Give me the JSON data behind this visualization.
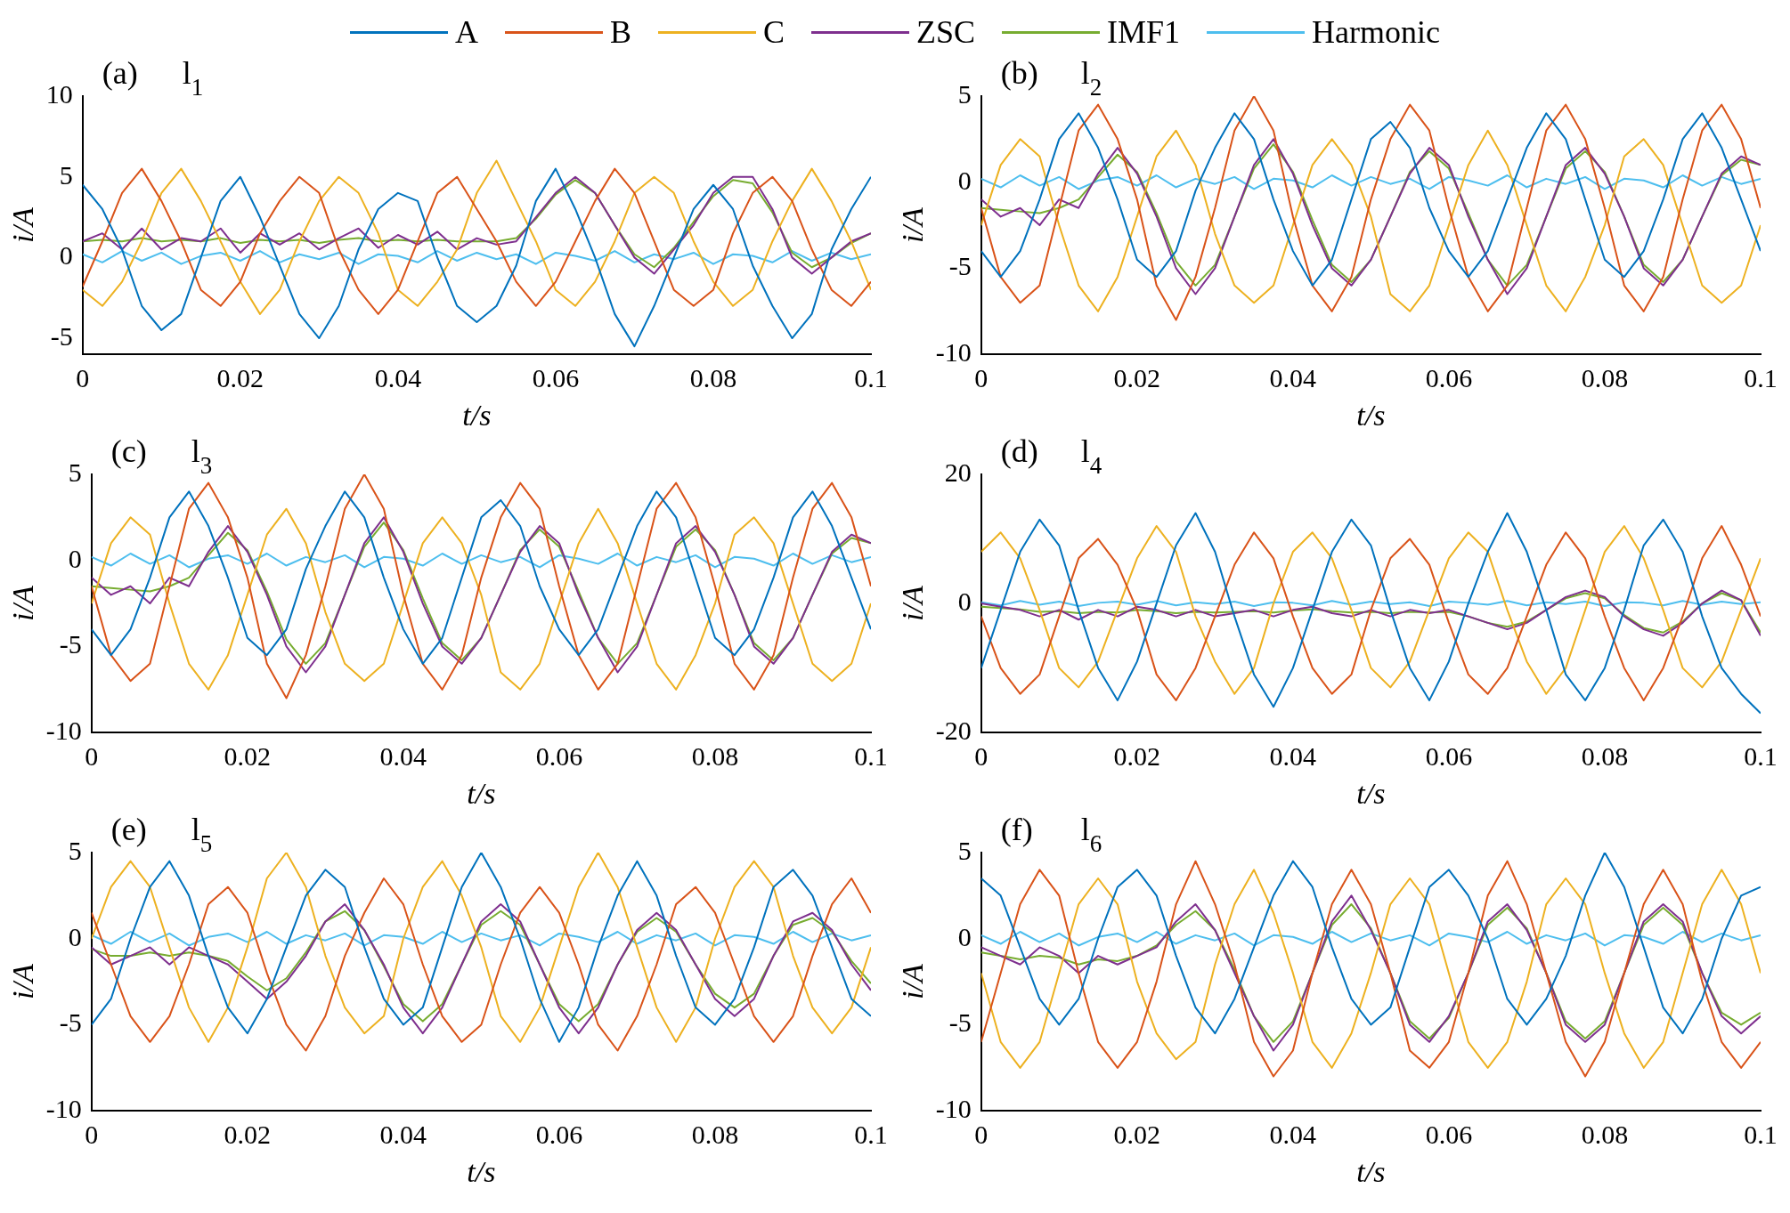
{
  "chart_data": [
    {
      "type": "line",
      "annotations": [
        "(a)",
        "l$_{1}$"
      ],
      "xlabel": "t/s",
      "ylabel": "i/A",
      "xlim": [
        0,
        0.1
      ],
      "xticks": [
        0,
        0.02,
        0.04,
        0.06,
        0.08,
        0.1
      ],
      "ylim": [
        -6,
        10
      ],
      "yticks": [
        -5,
        0,
        5,
        10
      ],
      "grid": false,
      "legend": "top",
      "marker": "none",
      "x": [
        0,
        0.0025,
        0.005,
        0.0075,
        0.01,
        0.0125,
        0.015,
        0.0175,
        0.02,
        0.0225,
        0.025,
        0.0275,
        0.03,
        0.0325,
        0.035,
        0.0375,
        0.04,
        0.0425,
        0.045,
        0.0475,
        0.05,
        0.0525,
        0.055,
        0.0575,
        0.06,
        0.0625,
        0.065,
        0.0675,
        0.07,
        0.0725,
        0.075,
        0.0775,
        0.08,
        0.0825,
        0.085,
        0.0875,
        0.09,
        0.0925,
        0.095,
        0.0975,
        0.1
      ],
      "series": [
        {
          "name": "A",
          "color": "#0072bd",
          "values": [
            4.5,
            3,
            0.5,
            -3,
            -4.5,
            -3.5,
            0,
            3.5,
            5,
            2.5,
            -0.5,
            -3.5,
            -5,
            -3,
            0.5,
            3,
            4,
            3.5,
            0,
            -3,
            -4,
            -3,
            -0.5,
            3.5,
            5.5,
            3,
            0,
            -3.5,
            -5.5,
            -3,
            0,
            3,
            4.5,
            3,
            -0.5,
            -3,
            -5,
            -3.5,
            0.5,
            3,
            5
          ]
        },
        {
          "name": "B",
          "color": "#d95319",
          "values": [
            -1.8,
            1,
            4,
            5.5,
            3.5,
            1,
            -2,
            -3,
            -1.5,
            1.5,
            3.5,
            5,
            4,
            0.5,
            -2,
            -3.5,
            -2,
            1,
            4,
            5,
            3,
            1,
            -1.5,
            -3,
            -1.5,
            1,
            3.5,
            5.5,
            4,
            1,
            -2,
            -3,
            -2,
            1.5,
            4,
            5,
            3.5,
            0.5,
            -2,
            -3,
            -1.5
          ]
        },
        {
          "name": "C",
          "color": "#edb120",
          "values": [
            -2,
            -3,
            -1.5,
            1,
            4,
            5.5,
            3.5,
            1,
            -1.5,
            -3.5,
            -2,
            1,
            3.5,
            5,
            4,
            1.5,
            -2,
            -3,
            -1.5,
            0.5,
            4,
            6,
            3.5,
            1,
            -2,
            -3,
            -1.5,
            1,
            4,
            5,
            4,
            1,
            -1.5,
            -3,
            -2,
            1,
            3.5,
            5.5,
            3.5,
            1,
            -2
          ]
        },
        {
          "name": "ZSC",
          "color": "#7e2f8e",
          "values": [
            1,
            1.5,
            0.5,
            1.8,
            0.5,
            1.2,
            1,
            1.8,
            0.3,
            1.5,
            0.8,
            1.5,
            0.5,
            1.2,
            1.8,
            0.6,
            1.4,
            0.8,
            1.6,
            0.5,
            1.2,
            0.8,
            1,
            2.5,
            4,
            5,
            4,
            2,
            0,
            -1,
            0.5,
            2,
            4,
            5,
            5,
            3,
            0,
            -1,
            0,
            1,
            1.5
          ]
        },
        {
          "name": "IMF1",
          "color": "#77ac30",
          "values": [
            1,
            1.1,
            1,
            1.2,
            1,
            1.1,
            1,
            1.2,
            0.9,
            1.1,
            1,
            1.1,
            0.9,
            1.1,
            1.2,
            1,
            1.1,
            1,
            1.1,
            1,
            1,
            1,
            1.2,
            2.4,
            3.9,
            4.8,
            4,
            2,
            0.2,
            -0.6,
            0.6,
            2.2,
            3.8,
            4.8,
            4.6,
            2.8,
            0.3,
            -0.6,
            0,
            0.9,
            1.5
          ]
        },
        {
          "name": "Harmonic",
          "color": "#4dbeee",
          "values": [
            0.2,
            -0.3,
            0.4,
            -0.2,
            0.3,
            -0.4,
            0.1,
            0.3,
            -0.2,
            0.4,
            -0.3,
            0.2,
            -0.1,
            0.3,
            -0.4,
            0.2,
            0.1,
            -0.3,
            0.4,
            -0.2,
            0.3,
            -0.1,
            0.2,
            -0.4,
            0.3,
            0.1,
            -0.2,
            0.4,
            -0.3,
            0.2,
            -0.1,
            0.3,
            -0.4,
            0.2,
            0.1,
            -0.3,
            0.4,
            -0.2,
            0.3,
            -0.1,
            0.2
          ]
        }
      ]
    },
    {
      "type": "line",
      "annotations": [
        "(b)",
        "l$_{2}$"
      ],
      "xlabel": "t/s",
      "ylabel": "i/A",
      "xlim": [
        0,
        0.1
      ],
      "xticks": [
        0,
        0.02,
        0.04,
        0.06,
        0.08,
        0.1
      ],
      "ylim": [
        -10,
        5
      ],
      "yticks": [
        -10,
        -5,
        0,
        5
      ],
      "grid": false,
      "marker": "none",
      "x": [
        0,
        0.0025,
        0.005,
        0.0075,
        0.01,
        0.0125,
        0.015,
        0.0175,
        0.02,
        0.0225,
        0.025,
        0.0275,
        0.03,
        0.0325,
        0.035,
        0.0375,
        0.04,
        0.0425,
        0.045,
        0.0475,
        0.05,
        0.0525,
        0.055,
        0.0575,
        0.06,
        0.0625,
        0.065,
        0.0675,
        0.07,
        0.0725,
        0.075,
        0.0775,
        0.08,
        0.0825,
        0.085,
        0.0875,
        0.09,
        0.0925,
        0.095,
        0.0975,
        0.1
      ],
      "series": [
        {
          "color": "#0072bd",
          "values": [
            -4,
            -5.5,
            -4,
            -1,
            2.5,
            4,
            2,
            -1,
            -4.5,
            -5.5,
            -4,
            -0.5,
            2,
            4,
            2.5,
            -1,
            -4,
            -6,
            -4.5,
            -1,
            2.5,
            3.5,
            2,
            -1.5,
            -4,
            -5.5,
            -4,
            -1,
            2,
            4,
            2.5,
            -1,
            -4.5,
            -5.5,
            -4,
            -1,
            2.5,
            4,
            2,
            -1,
            -4
          ]
        },
        {
          "color": "#d95319",
          "values": [
            -1.5,
            -5.5,
            -7,
            -6,
            -1.5,
            3,
            4.5,
            2.5,
            -1,
            -6,
            -8,
            -5.5,
            -1.5,
            3,
            5,
            3,
            -2,
            -6,
            -7.5,
            -5.5,
            -1,
            2.5,
            4.5,
            3,
            -1.5,
            -5.5,
            -7.5,
            -6,
            -1.5,
            3,
            4.5,
            2.5,
            -1.5,
            -6,
            -7.5,
            -5.5,
            -1,
            3,
            4.5,
            2.5,
            -1.5
          ]
        },
        {
          "color": "#edb120",
          "values": [
            -2.5,
            1,
            2.5,
            1.5,
            -2.5,
            -6,
            -7.5,
            -5.5,
            -2,
            1.5,
            3,
            1,
            -3,
            -6,
            -7,
            -6,
            -2.5,
            1,
            2.5,
            1,
            -2,
            -6.5,
            -7.5,
            -6,
            -2.5,
            1,
            3,
            1,
            -2.5,
            -6,
            -7.5,
            -5.5,
            -2.5,
            1.5,
            2.5,
            1,
            -2.5,
            -6,
            -7,
            -6,
            -2.5
          ]
        },
        {
          "color": "#7e2f8e",
          "values": [
            -1,
            -2,
            -1.5,
            -2.5,
            -1,
            -1.5,
            0.5,
            2,
            0.5,
            -2,
            -5,
            -6.5,
            -5,
            -2,
            1,
            2.5,
            0.5,
            -2.5,
            -5,
            -6,
            -4.5,
            -2,
            0.5,
            2,
            1,
            -2,
            -4.5,
            -6.5,
            -5,
            -2,
            1,
            2,
            0.5,
            -2,
            -5,
            -6,
            -4.5,
            -2,
            0.5,
            1.5,
            1
          ]
        },
        {
          "color": "#77ac30",
          "values": [
            -1.5,
            -1.6,
            -1.7,
            -1.8,
            -1.5,
            -1,
            0.3,
            1.6,
            0.6,
            -1.8,
            -4.6,
            -6,
            -4.8,
            -2,
            0.8,
            2.2,
            0.6,
            -2.2,
            -4.8,
            -5.8,
            -4.5,
            -2,
            0.6,
            1.8,
            0.8,
            -1.8,
            -4.5,
            -6,
            -4.8,
            -2,
            0.8,
            1.8,
            0.6,
            -2,
            -4.8,
            -5.8,
            -4.5,
            -2,
            0.4,
            1.3,
            1
          ]
        },
        {
          "color": "#4dbeee",
          "values": [
            0.2,
            -0.3,
            0.4,
            -0.2,
            0.3,
            -0.4,
            0.1,
            0.3,
            -0.2,
            0.4,
            -0.3,
            0.2,
            -0.1,
            0.3,
            -0.4,
            0.2,
            0.1,
            -0.3,
            0.4,
            -0.2,
            0.3,
            -0.1,
            0.2,
            -0.4,
            0.3,
            0.1,
            -0.2,
            0.4,
            -0.3,
            0.2,
            -0.1,
            0.3,
            -0.4,
            0.2,
            0.1,
            -0.3,
            0.4,
            -0.2,
            0.3,
            -0.1,
            0.2
          ]
        }
      ]
    },
    {
      "type": "line",
      "annotations": [
        "(c)",
        "l$_{3}$"
      ],
      "xlabel": "t/s",
      "ylabel": "i/A",
      "xlim": [
        0,
        0.1
      ],
      "xticks": [
        0,
        0.02,
        0.04,
        0.06,
        0.08,
        0.1
      ],
      "ylim": [
        -10,
        5
      ],
      "yticks": [
        -10,
        -5,
        0,
        5
      ],
      "grid": false,
      "marker": "none",
      "x": [
        0,
        0.0025,
        0.005,
        0.0075,
        0.01,
        0.0125,
        0.015,
        0.0175,
        0.02,
        0.0225,
        0.025,
        0.0275,
        0.03,
        0.0325,
        0.035,
        0.0375,
        0.04,
        0.0425,
        0.045,
        0.0475,
        0.05,
        0.0525,
        0.055,
        0.0575,
        0.06,
        0.0625,
        0.065,
        0.0675,
        0.07,
        0.0725,
        0.075,
        0.0775,
        0.08,
        0.0825,
        0.085,
        0.0875,
        0.09,
        0.0925,
        0.095,
        0.0975,
        0.1
      ],
      "series": [
        {
          "color": "#0072bd",
          "values": [
            -4,
            -5.5,
            -4,
            -1,
            2.5,
            4,
            2,
            -1,
            -4.5,
            -5.5,
            -4,
            -0.5,
            2,
            4,
            2.5,
            -1,
            -4,
            -6,
            -4.5,
            -1,
            2.5,
            3.5,
            2,
            -1.5,
            -4,
            -5.5,
            -4,
            -1,
            2,
            4,
            2.5,
            -1,
            -4.5,
            -5.5,
            -4,
            -1,
            2.5,
            4,
            2,
            -1,
            -4
          ]
        },
        {
          "color": "#d95319",
          "values": [
            -1.5,
            -5.5,
            -7,
            -6,
            -1.5,
            3,
            4.5,
            2.5,
            -1,
            -6,
            -8,
            -5.5,
            -1.5,
            3,
            5,
            3,
            -2,
            -6,
            -7.5,
            -5.5,
            -1,
            2.5,
            4.5,
            3,
            -1.5,
            -5.5,
            -7.5,
            -6,
            -1.5,
            3,
            4.5,
            2.5,
            -1.5,
            -6,
            -7.5,
            -5.5,
            -1,
            3,
            4.5,
            2.5,
            -1.5
          ]
        },
        {
          "color": "#edb120",
          "values": [
            -2.5,
            1,
            2.5,
            1.5,
            -2.5,
            -6,
            -7.5,
            -5.5,
            -2,
            1.5,
            3,
            1,
            -3,
            -6,
            -7,
            -6,
            -2.5,
            1,
            2.5,
            1,
            -2,
            -6.5,
            -7.5,
            -6,
            -2.5,
            1,
            3,
            1,
            -2.5,
            -6,
            -7.5,
            -5.5,
            -2.5,
            1.5,
            2.5,
            1,
            -2.5,
            -6,
            -7,
            -6,
            -2.5
          ]
        },
        {
          "color": "#7e2f8e",
          "values": [
            -1,
            -2,
            -1.5,
            -2.5,
            -1,
            -1.5,
            0.5,
            2,
            0.5,
            -2,
            -5,
            -6.5,
            -5,
            -2,
            1,
            2.5,
            0.5,
            -2.5,
            -5,
            -6,
            -4.5,
            -2,
            0.5,
            2,
            1,
            -2,
            -4.5,
            -6.5,
            -5,
            -2,
            1,
            2,
            0.5,
            -2,
            -5,
            -6,
            -4.5,
            -2,
            0.5,
            1.5,
            1
          ]
        },
        {
          "color": "#77ac30",
          "values": [
            -1.5,
            -1.6,
            -1.7,
            -1.8,
            -1.5,
            -1,
            0.3,
            1.6,
            0.6,
            -1.8,
            -4.6,
            -6,
            -4.8,
            -2,
            0.8,
            2.2,
            0.6,
            -2.2,
            -4.8,
            -5.8,
            -4.5,
            -2,
            0.6,
            1.8,
            0.8,
            -1.8,
            -4.5,
            -6,
            -4.8,
            -2,
            0.8,
            1.8,
            0.6,
            -2,
            -4.8,
            -5.8,
            -4.5,
            -2,
            0.4,
            1.3,
            1
          ]
        },
        {
          "color": "#4dbeee",
          "values": [
            0.2,
            -0.3,
            0.4,
            -0.2,
            0.3,
            -0.4,
            0.1,
            0.3,
            -0.2,
            0.4,
            -0.3,
            0.2,
            -0.1,
            0.3,
            -0.4,
            0.2,
            0.1,
            -0.3,
            0.4,
            -0.2,
            0.3,
            -0.1,
            0.2,
            -0.4,
            0.3,
            0.1,
            -0.2,
            0.4,
            -0.3,
            0.2,
            -0.1,
            0.3,
            -0.4,
            0.2,
            0.1,
            -0.3,
            0.4,
            -0.2,
            0.3,
            -0.1,
            0.2
          ]
        }
      ]
    },
    {
      "type": "line",
      "annotations": [
        "(d)",
        "l$_{4}$"
      ],
      "xlabel": "t/s",
      "ylabel": "i/A",
      "xlim": [
        0,
        0.1
      ],
      "xticks": [
        0,
        0.02,
        0.04,
        0.06,
        0.08,
        0.1
      ],
      "ylim": [
        -20,
        20
      ],
      "yticks": [
        -20,
        0,
        20
      ],
      "grid": false,
      "marker": "none",
      "x": [
        0,
        0.0025,
        0.005,
        0.0075,
        0.01,
        0.0125,
        0.015,
        0.0175,
        0.02,
        0.0225,
        0.025,
        0.0275,
        0.03,
        0.0325,
        0.035,
        0.0375,
        0.04,
        0.0425,
        0.045,
        0.0475,
        0.05,
        0.0525,
        0.055,
        0.0575,
        0.06,
        0.0625,
        0.065,
        0.0675,
        0.07,
        0.0725,
        0.075,
        0.0775,
        0.08,
        0.0825,
        0.085,
        0.0875,
        0.09,
        0.0925,
        0.095,
        0.0975,
        0.1
      ],
      "series": [
        {
          "color": "#0072bd",
          "values": [
            -10,
            -1,
            8,
            13,
            9,
            -1,
            -10,
            -15,
            -9,
            0,
            9,
            14,
            8,
            -2,
            -11,
            -16,
            -10,
            -1,
            8,
            13,
            9,
            -1,
            -10,
            -15,
            -9,
            0,
            8,
            14,
            8,
            -1,
            -11,
            -15,
            -10,
            -1,
            9,
            13,
            8,
            -2,
            -10,
            -14,
            -17
          ]
        },
        {
          "color": "#d95319",
          "values": [
            -2,
            -10,
            -14,
            -11,
            -2,
            7,
            10,
            6,
            -1,
            -11,
            -15,
            -10,
            -2,
            6,
            11,
            7,
            -2,
            -10,
            -14,
            -11,
            -1,
            7,
            10,
            6,
            -3,
            -11,
            -14,
            -10,
            -2,
            6,
            11,
            7,
            -2,
            -10,
            -15,
            -10,
            -2,
            7,
            12,
            6,
            -2
          ]
        },
        {
          "color": "#edb120",
          "values": [
            8,
            11,
            7,
            -1,
            -10,
            -13,
            -9,
            -1,
            7,
            12,
            8,
            -2,
            -9,
            -14,
            -10,
            0,
            8,
            11,
            7,
            -1,
            -10,
            -13,
            -9,
            -1,
            7,
            11,
            8,
            -1,
            -9,
            -14,
            -10,
            -1,
            8,
            12,
            7,
            -1,
            -10,
            -13,
            -9,
            -1,
            7
          ]
        },
        {
          "color": "#7e2f8e",
          "values": [
            0,
            -0.5,
            -1,
            -2,
            -1,
            -2.5,
            -1,
            -2,
            -0.5,
            -1,
            -2,
            -1,
            -2,
            -1.5,
            -1,
            -2,
            -1,
            -0.5,
            -1.5,
            -2,
            -1,
            -2,
            -1,
            -1.5,
            -1,
            -2,
            -3,
            -4,
            -3,
            -1,
            1,
            2,
            1,
            -2,
            -4,
            -5,
            -3,
            0,
            2,
            0.5,
            -5
          ]
        },
        {
          "color": "#77ac30",
          "values": [
            -0.5,
            -0.7,
            -0.9,
            -1.3,
            -1.2,
            -1.5,
            -1.3,
            -1.4,
            -1,
            -1.2,
            -1.5,
            -1.3,
            -1.4,
            -1.3,
            -1.2,
            -1.4,
            -1.1,
            -0.9,
            -1.2,
            -1.4,
            -1.3,
            -1.5,
            -1.3,
            -1.4,
            -1.3,
            -2,
            -3,
            -3.6,
            -2.8,
            -1,
            0.8,
            1.6,
            0.8,
            -1.8,
            -3.8,
            -4.5,
            -2.8,
            0,
            1.6,
            0.5,
            -4.5
          ]
        },
        {
          "color": "#4dbeee",
          "values": [
            0.2,
            -0.3,
            0.4,
            -0.2,
            0.3,
            -0.4,
            0.1,
            0.3,
            -0.2,
            0.4,
            -0.3,
            0.2,
            -0.1,
            0.3,
            -0.4,
            0.2,
            0.1,
            -0.3,
            0.4,
            -0.2,
            0.3,
            -0.1,
            0.2,
            -0.4,
            0.3,
            0.1,
            -0.2,
            0.4,
            -0.3,
            0.2,
            -0.1,
            0.3,
            -0.4,
            0.2,
            0.1,
            -0.3,
            0.4,
            -0.2,
            0.3,
            -0.1,
            0.2
          ]
        }
      ]
    },
    {
      "type": "line",
      "annotations": [
        "(e)",
        "l$_{5}$"
      ],
      "xlabel": "t/s",
      "ylabel": "i/A",
      "xlim": [
        0,
        0.1
      ],
      "xticks": [
        0,
        0.02,
        0.04,
        0.06,
        0.08,
        0.1
      ],
      "ylim": [
        -10,
        5
      ],
      "yticks": [
        -10,
        -5,
        0,
        5
      ],
      "grid": false,
      "marker": "none",
      "x": [
        0,
        0.0025,
        0.005,
        0.0075,
        0.01,
        0.0125,
        0.015,
        0.0175,
        0.02,
        0.0225,
        0.025,
        0.0275,
        0.03,
        0.0325,
        0.035,
        0.0375,
        0.04,
        0.0425,
        0.045,
        0.0475,
        0.05,
        0.0525,
        0.055,
        0.0575,
        0.06,
        0.0625,
        0.065,
        0.0675,
        0.07,
        0.0725,
        0.075,
        0.0775,
        0.08,
        0.0825,
        0.085,
        0.0875,
        0.09,
        0.0925,
        0.095,
        0.0975,
        0.1
      ],
      "series": [
        {
          "color": "#0072bd",
          "values": [
            -5,
            -3.5,
            0,
            3,
            4.5,
            2.5,
            -1,
            -4,
            -5.5,
            -3.5,
            -0.5,
            2.5,
            4,
            3,
            -0.5,
            -3.5,
            -5,
            -4,
            -0.5,
            3,
            5,
            3,
            0,
            -3.5,
            -6,
            -4,
            -0.5,
            2.5,
            4.5,
            2.5,
            -1,
            -4,
            -5,
            -3.5,
            -0.5,
            3,
            4,
            2.5,
            -0.5,
            -3.5,
            -4.5
          ]
        },
        {
          "color": "#d95319",
          "values": [
            1.5,
            -1.5,
            -4.5,
            -6,
            -4.5,
            -1.5,
            2,
            3,
            1.5,
            -2,
            -5,
            -6.5,
            -4.5,
            -1,
            1.5,
            3.5,
            2,
            -1.5,
            -4.5,
            -6,
            -5,
            -1.5,
            1.5,
            3,
            1.5,
            -1.5,
            -5,
            -6.5,
            -4.5,
            -1.5,
            2,
            3,
            1.5,
            -1.5,
            -4.5,
            -6,
            -4.5,
            -1,
            2,
            3.5,
            1.5
          ]
        },
        {
          "color": "#edb120",
          "values": [
            0,
            3,
            4.5,
            3,
            -0.5,
            -4,
            -6,
            -4,
            -0.5,
            3.5,
            5,
            3,
            -1,
            -4,
            -5.5,
            -4.5,
            0,
            3,
            4.5,
            2.5,
            -0.5,
            -4.5,
            -6,
            -4,
            -0.5,
            3,
            5,
            3,
            -0.5,
            -4,
            -6,
            -4,
            0,
            3,
            4.5,
            3,
            -1,
            -4,
            -5.5,
            -4,
            -0.5
          ]
        },
        {
          "color": "#7e2f8e",
          "values": [
            -0.5,
            -1.5,
            -1,
            -0.5,
            -1.5,
            -0.5,
            -1,
            -1.5,
            -2.5,
            -3.5,
            -2.5,
            -1,
            1,
            2,
            0.5,
            -1.5,
            -4,
            -5.5,
            -4,
            -1.5,
            1,
            2,
            1,
            -1.5,
            -4,
            -5.5,
            -4,
            -1.5,
            0.5,
            1.5,
            0.5,
            -1.5,
            -3.5,
            -4.5,
            -3.5,
            -1,
            1,
            1.5,
            0.5,
            -1.5,
            -3
          ]
        },
        {
          "color": "#77ac30",
          "values": [
            -0.6,
            -1,
            -1,
            -0.8,
            -1,
            -0.8,
            -1,
            -1.3,
            -2.2,
            -3,
            -2.3,
            -0.8,
            1,
            1.6,
            0.5,
            -1.6,
            -3.8,
            -4.8,
            -3.8,
            -1.5,
            0.8,
            1.6,
            0.8,
            -1.5,
            -3.8,
            -4.8,
            -3.8,
            -1.5,
            0.4,
            1.2,
            0.4,
            -1.5,
            -3.2,
            -4,
            -3.2,
            -1,
            0.8,
            1.2,
            0.4,
            -1.3,
            -2.6
          ]
        },
        {
          "color": "#4dbeee",
          "values": [
            0.2,
            -0.3,
            0.4,
            -0.2,
            0.3,
            -0.4,
            0.1,
            0.3,
            -0.2,
            0.4,
            -0.3,
            0.2,
            -0.1,
            0.3,
            -0.4,
            0.2,
            0.1,
            -0.3,
            0.4,
            -0.2,
            0.3,
            -0.1,
            0.2,
            -0.4,
            0.3,
            0.1,
            -0.2,
            0.4,
            -0.3,
            0.2,
            -0.1,
            0.3,
            -0.4,
            0.2,
            0.1,
            -0.3,
            0.4,
            -0.2,
            0.3,
            -0.1,
            0.2
          ]
        }
      ]
    },
    {
      "type": "line",
      "annotations": [
        "(f)",
        "l$_{6}$"
      ],
      "xlabel": "t/s",
      "ylabel": "i/A",
      "xlim": [
        0,
        0.1
      ],
      "xticks": [
        0,
        0.02,
        0.04,
        0.06,
        0.08,
        0.1
      ],
      "ylim": [
        -10,
        5
      ],
      "yticks": [
        -10,
        -5,
        0,
        5
      ],
      "grid": false,
      "marker": "none",
      "x": [
        0,
        0.0025,
        0.005,
        0.0075,
        0.01,
        0.0125,
        0.015,
        0.0175,
        0.02,
        0.0225,
        0.025,
        0.0275,
        0.03,
        0.0325,
        0.035,
        0.0375,
        0.04,
        0.0425,
        0.045,
        0.0475,
        0.05,
        0.0525,
        0.055,
        0.0575,
        0.06,
        0.0625,
        0.065,
        0.0675,
        0.07,
        0.0725,
        0.075,
        0.0775,
        0.08,
        0.0825,
        0.085,
        0.0875,
        0.09,
        0.0925,
        0.095,
        0.0975,
        0.1
      ],
      "series": [
        {
          "color": "#0072bd",
          "values": [
            3.5,
            2.5,
            -0.5,
            -3.5,
            -5,
            -3.5,
            0,
            3,
            4,
            2.5,
            -1,
            -4,
            -5.5,
            -3.5,
            -0.5,
            2.5,
            4.5,
            3,
            -0.5,
            -3.5,
            -5,
            -4,
            -0.5,
            3,
            4,
            2.5,
            0,
            -3.5,
            -5,
            -3.5,
            -1,
            2.5,
            5,
            3,
            -0.5,
            -4,
            -5.5,
            -3.5,
            0,
            2.5,
            3
          ]
        },
        {
          "color": "#d95319",
          "values": [
            -6,
            -2,
            2,
            4,
            2.5,
            -2,
            -6,
            -7.5,
            -6,
            -2.5,
            2,
            4.5,
            2,
            -1.5,
            -6,
            -8,
            -6.5,
            -2,
            2,
            4,
            2,
            -2,
            -6.5,
            -7.5,
            -6,
            -2,
            2.5,
            4.5,
            2,
            -2,
            -6,
            -8,
            -6,
            -2,
            2,
            4,
            2,
            -2.5,
            -6,
            -7.5,
            -6
          ]
        },
        {
          "color": "#edb120",
          "values": [
            -2,
            -6,
            -7.5,
            -6,
            -2,
            2,
            3.5,
            2,
            -2.5,
            -5.5,
            -7,
            -6,
            -1.5,
            2,
            4,
            1.5,
            -2,
            -6,
            -7.5,
            -5.5,
            -2,
            2,
            3.5,
            2,
            -2,
            -6,
            -7.5,
            -6,
            -2.5,
            2,
            3.5,
            2,
            -2,
            -5.5,
            -7.5,
            -6,
            -2,
            2,
            4,
            2,
            -2
          ]
        },
        {
          "color": "#7e2f8e",
          "values": [
            -0.5,
            -1,
            -1.5,
            -0.5,
            -1,
            -2,
            -1,
            -1.5,
            -1,
            -0.5,
            1,
            2,
            0.5,
            -2,
            -4.5,
            -6.5,
            -5,
            -2,
            1,
            2.5,
            0.5,
            -2,
            -5,
            -6,
            -4.5,
            -2,
            1,
            2,
            0.5,
            -2,
            -5,
            -6,
            -5,
            -2,
            1,
            2,
            1,
            -2,
            -4.5,
            -5.5,
            -4.5
          ]
        },
        {
          "color": "#77ac30",
          "values": [
            -0.8,
            -1,
            -1.2,
            -1,
            -1.1,
            -1.5,
            -1.2,
            -1.3,
            -1,
            -0.4,
            0.8,
            1.6,
            0.5,
            -1.8,
            -4.5,
            -6,
            -4.8,
            -2,
            0.8,
            2,
            0.6,
            -2,
            -4.8,
            -5.8,
            -4.6,
            -2,
            0.8,
            1.8,
            0.6,
            -2,
            -4.8,
            -5.8,
            -4.8,
            -2,
            0.8,
            1.8,
            0.8,
            -2,
            -4.3,
            -5,
            -4.3
          ]
        },
        {
          "color": "#4dbeee",
          "values": [
            0.2,
            -0.3,
            0.4,
            -0.2,
            0.3,
            -0.4,
            0.1,
            0.3,
            -0.2,
            0.4,
            -0.3,
            0.2,
            -0.1,
            0.3,
            -0.4,
            0.2,
            0.1,
            -0.3,
            0.4,
            -0.2,
            0.3,
            -0.1,
            0.2,
            -0.4,
            0.3,
            0.1,
            -0.2,
            0.4,
            -0.3,
            0.2,
            -0.1,
            0.3,
            -0.4,
            0.2,
            0.1,
            -0.3,
            0.4,
            -0.2,
            0.3,
            -0.1,
            0.2
          ]
        }
      ]
    }
  ]
}
